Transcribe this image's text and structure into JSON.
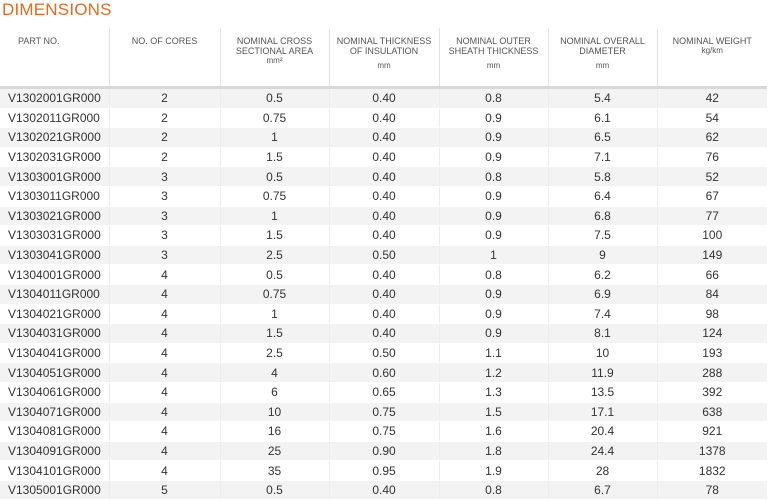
{
  "title": "DIMENSIONS",
  "columns": [
    {
      "label": "PART NO.",
      "unit": ""
    },
    {
      "label": "NO. OF CORES",
      "unit": ""
    },
    {
      "label": "NOMINAL CROSS SECTIONAL AREA",
      "unit": "mm²"
    },
    {
      "label": "NOMINAL THICKNESS OF INSULATION",
      "unit": "mm"
    },
    {
      "label": "NOMINAL OUTER SHEATH THICKNESS",
      "unit": "mm"
    },
    {
      "label": "NOMINAL OVERALL DIAMETER",
      "unit": "mm"
    },
    {
      "label": "NOMINAL WEIGHT",
      "unit": "kg/km"
    }
  ],
  "rows": [
    [
      "V1302001GR000",
      "2",
      "0.5",
      "0.40",
      "0.8",
      "5.4",
      "42"
    ],
    [
      "V1302011GR000",
      "2",
      "0.75",
      "0.40",
      "0.9",
      "6.1",
      "54"
    ],
    [
      "V1302021GR000",
      "2",
      "1",
      "0.40",
      "0.9",
      "6.5",
      "62"
    ],
    [
      "V1302031GR000",
      "2",
      "1.5",
      "0.40",
      "0.9",
      "7.1",
      "76"
    ],
    [
      "V1303001GR000",
      "3",
      "0.5",
      "0.40",
      "0.8",
      "5.8",
      "52"
    ],
    [
      "V1303011GR000",
      "3",
      "0.75",
      "0.40",
      "0.9",
      "6.4",
      "67"
    ],
    [
      "V1303021GR000",
      "3",
      "1",
      "0.40",
      "0.9",
      "6.8",
      "77"
    ],
    [
      "V1303031GR000",
      "3",
      "1.5",
      "0.40",
      "0.9",
      "7.5",
      "100"
    ],
    [
      "V1303041GR000",
      "3",
      "2.5",
      "0.50",
      "1",
      "9",
      "149"
    ],
    [
      "V1304001GR000",
      "4",
      "0.5",
      "0.40",
      "0.8",
      "6.2",
      "66"
    ],
    [
      "V1304011GR000",
      "4",
      "0.75",
      "0.40",
      "0.9",
      "6.9",
      "84"
    ],
    [
      "V1304021GR000",
      "4",
      "1",
      "0.40",
      "0.9",
      "7.4",
      "98"
    ],
    [
      "V1304031GR000",
      "4",
      "1.5",
      "0.40",
      "0.9",
      "8.1",
      "124"
    ],
    [
      "V1304041GR000",
      "4",
      "2.5",
      "0.50",
      "1.1",
      "10",
      "193"
    ],
    [
      "V1304051GR000",
      "4",
      "4",
      "0.60",
      "1.2",
      "11.9",
      "288"
    ],
    [
      "V1304061GR000",
      "4",
      "6",
      "0.65",
      "1.3",
      "13.5",
      "392"
    ],
    [
      "V1304071GR000",
      "4",
      "10",
      "0.75",
      "1.5",
      "17.1",
      "638"
    ],
    [
      "V1304081GR000",
      "4",
      "16",
      "0.75",
      "1.6",
      "20.4",
      "921"
    ],
    [
      "V1304091GR000",
      "4",
      "25",
      "0.90",
      "1.8",
      "24.4",
      "1378"
    ],
    [
      "V1304101GR000",
      "4",
      "35",
      "0.95",
      "1.9",
      "28",
      "1832"
    ],
    [
      "V1305001GR000",
      "5",
      "0.5",
      "0.40",
      "0.8",
      "6.7",
      "78"
    ]
  ],
  "colors": {
    "title": "#e36b1d",
    "row_stripe": "#f3f3f3"
  }
}
